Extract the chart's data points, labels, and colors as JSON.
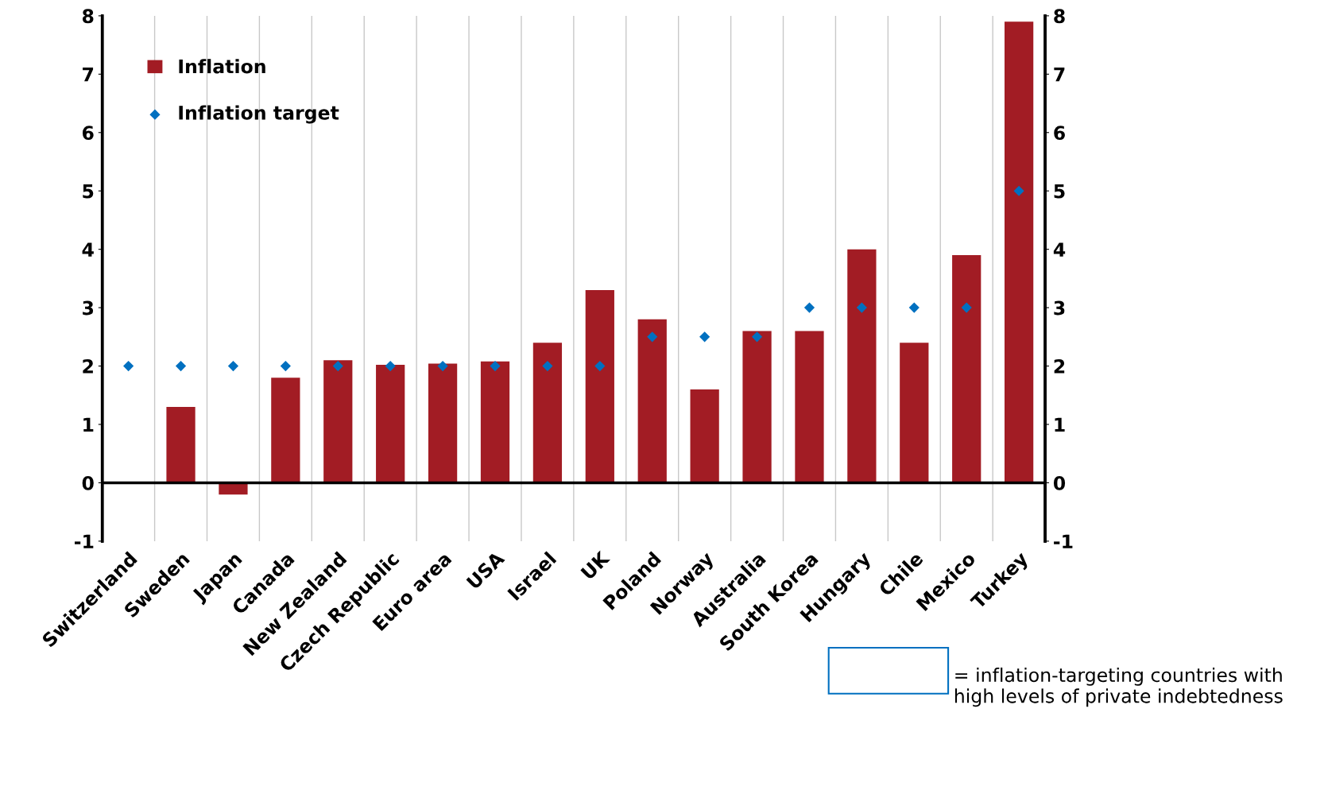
{
  "chart_data": {
    "type": "bar",
    "categories": [
      "Switzerland",
      "Sweden",
      "Japan",
      "Canada",
      "New Zealand",
      "Czech Republic",
      "Euro area",
      "USA",
      "Israel",
      "UK",
      "Poland",
      "Norway",
      "Australia",
      "South Korea",
      "Hungary",
      "Chile",
      "Mexico",
      "Turkey"
    ],
    "series": [
      {
        "name": "Inflation",
        "color": "#a21c24",
        "values": [
          0,
          1.3,
          -0.2,
          1.8,
          2.1,
          2.02,
          2.04,
          2.08,
          2.4,
          3.3,
          2.8,
          1.6,
          2.6,
          2.6,
          4.0,
          2.4,
          3.9,
          7.9
        ]
      },
      {
        "name": "Inflation target",
        "type": "scatter",
        "color": "#0070c0",
        "values": [
          2,
          2,
          2,
          2,
          2,
          2,
          2,
          2,
          2,
          2,
          2.5,
          2.5,
          2.5,
          3,
          3,
          3,
          3,
          5
        ]
      }
    ],
    "ylim": [
      -1,
      8
    ],
    "yticks": [
      -1,
      0,
      1,
      2,
      3,
      4,
      5,
      6,
      7,
      8
    ],
    "y2lim": [
      -1,
      8
    ],
    "y2ticks": [
      -1,
      0,
      1,
      2,
      3,
      4,
      5,
      6,
      7,
      8
    ],
    "grid": "x",
    "legend": "top left",
    "marker": "diamond",
    "annotations": [
      "= inflation-targeting countries with high levels of private indebtedness"
    ]
  }
}
